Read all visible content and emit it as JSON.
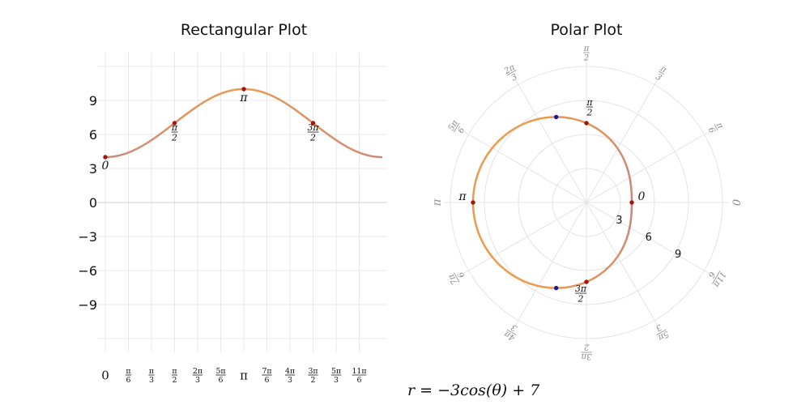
{
  "rect_title": "Rectangular Plot",
  "polar_title": "Polar Plot",
  "equation": "r = −3cos(θ) + 7",
  "chart_data": [
    {
      "type": "line",
      "title": "Rectangular Plot",
      "function": "r = -3cos(theta) + 7",
      "x_range_radians": [
        0,
        6.283
      ],
      "ylim": [
        -12,
        12
      ],
      "y_ticks": [
        9,
        6,
        3,
        0,
        -3,
        -6,
        -9
      ],
      "x_ticks": [
        {
          "value": 0,
          "label": "0"
        },
        {
          "value": 0.5236,
          "label": "π/6"
        },
        {
          "value": 1.0472,
          "label": "π/3"
        },
        {
          "value": 1.5708,
          "label": "π/2"
        },
        {
          "value": 2.0944,
          "label": "2π/3"
        },
        {
          "value": 2.618,
          "label": "5π/6"
        },
        {
          "value": 3.1416,
          "label": "π"
        },
        {
          "value": 3.6652,
          "label": "7π/6"
        },
        {
          "value": 4.1888,
          "label": "4π/3"
        },
        {
          "value": 4.7124,
          "label": "3π/2"
        },
        {
          "value": 5.236,
          "label": "5π/3"
        },
        {
          "value": 5.7596,
          "label": "11π/6"
        }
      ],
      "points": [
        {
          "x": 0,
          "y": 4,
          "label": "0"
        },
        {
          "x": 1.5708,
          "y": 7,
          "label": "π/2"
        },
        {
          "x": 3.1416,
          "y": 10,
          "label": "π"
        },
        {
          "x": 4.7124,
          "y": 7,
          "label": "3π/2"
        }
      ],
      "colors": {
        "curve_start": "#c98a7e",
        "curve_mid": "#ec9c4e",
        "point": "#a3160c"
      }
    },
    {
      "type": "line",
      "title": "Polar Plot",
      "function": "r = -3cos(theta) + 7",
      "r_ticks": [
        3,
        6,
        9
      ],
      "rmax": 10,
      "angle_ticks": [
        {
          "value": 0,
          "label": "0"
        },
        {
          "value": 0.5236,
          "label": "π/6"
        },
        {
          "value": 1.0472,
          "label": "π/3"
        },
        {
          "value": 1.5708,
          "label": "π/2"
        },
        {
          "value": 2.0944,
          "label": "2π/3"
        },
        {
          "value": 2.618,
          "label": "5π/6"
        },
        {
          "value": 3.1416,
          "label": "π"
        },
        {
          "value": 3.6652,
          "label": "7π/6"
        },
        {
          "value": 4.1888,
          "label": "4π/3"
        },
        {
          "value": 4.7124,
          "label": "3π/2"
        },
        {
          "value": 5.236,
          "label": "5π/3"
        },
        {
          "value": 5.7596,
          "label": "11π/6"
        }
      ],
      "points": [
        {
          "theta": 0,
          "r": 4,
          "label": "0",
          "color": "#a3160c"
        },
        {
          "theta": 1.5708,
          "r": 7,
          "label": "π/2",
          "color": "#a3160c"
        },
        {
          "theta": 3.1416,
          "r": 10,
          "label": "π",
          "color": "#a3160c"
        },
        {
          "theta": 4.7124,
          "r": 7,
          "label": "3π/2",
          "color": "#a3160c"
        },
        {
          "theta": 1.9106,
          "r": 8,
          "label": "",
          "color": "#1c1a8f"
        },
        {
          "theta": 4.3726,
          "r": 8,
          "label": "",
          "color": "#1c1a8f"
        }
      ]
    }
  ]
}
